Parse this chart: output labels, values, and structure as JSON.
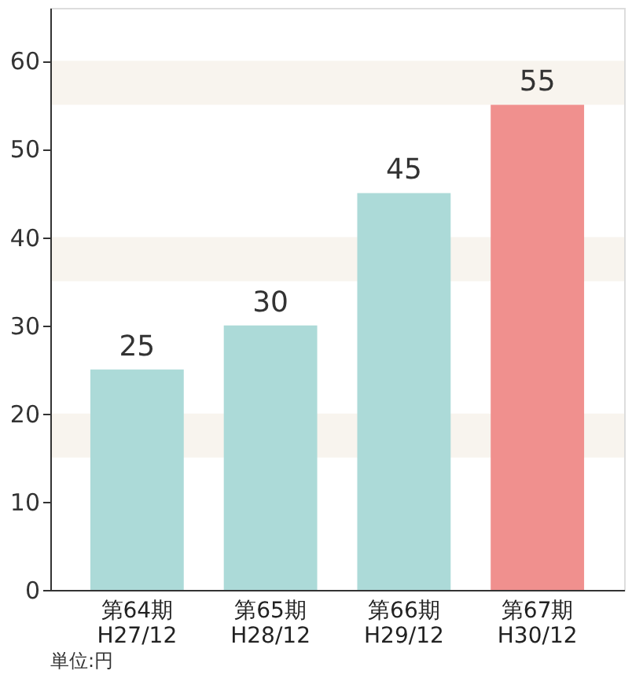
{
  "chart_data": {
    "type": "bar",
    "categories": [
      "第64期\nH27/12",
      "第65期\nH28/12",
      "第66期\nH29/12",
      "第67期\nH30/12"
    ],
    "values": [
      25,
      30,
      45,
      55
    ],
    "colors": [
      "#acdad8",
      "#acdad8",
      "#acdad8",
      "#f0908e"
    ],
    "ylim": [
      0,
      66
    ],
    "yticks": [
      0,
      10,
      20,
      30,
      40,
      50,
      60
    ],
    "grid": false,
    "data_labels": true,
    "bands": [
      {
        "axis": "y",
        "from": 55,
        "to": 60,
        "color": "#f8f4ee"
      },
      {
        "axis": "y",
        "from": 35,
        "to": 40,
        "color": "#f8f4ee"
      },
      {
        "axis": "y",
        "from": 15,
        "to": 20,
        "color": "#f8f4ee"
      }
    ],
    "annotations": [
      "単位:円"
    ]
  }
}
